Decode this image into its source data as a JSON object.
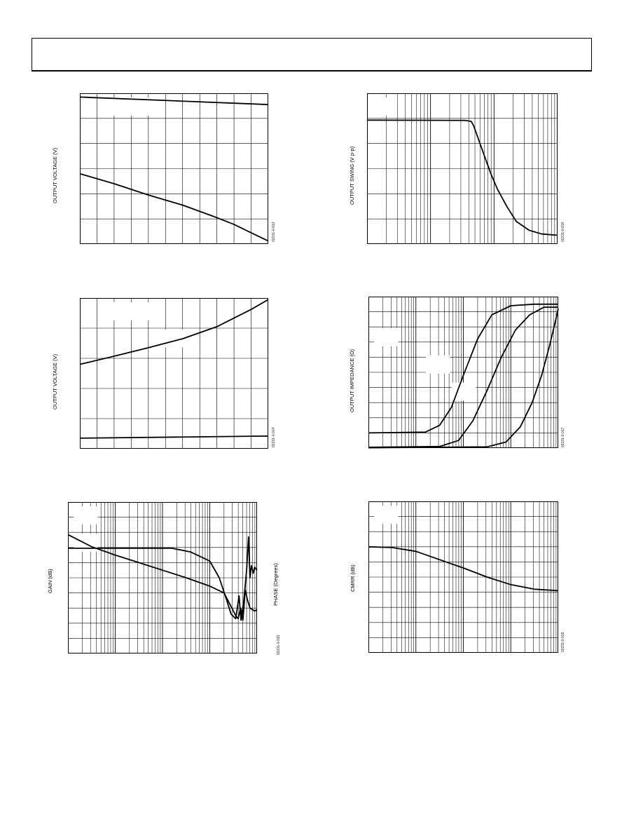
{
  "charts": [
    {
      "id": "c1",
      "ylabel": "OUTPUT VOLTAGE (V)",
      "code": "02231-0-013",
      "xscale": "linear",
      "xlim": [
        0,
        11
      ],
      "ylim": [
        0,
        6
      ],
      "xgrid": [
        1,
        2,
        3,
        4,
        5,
        6,
        7,
        8,
        9,
        10
      ],
      "ygrid": [
        1,
        2,
        3,
        4,
        5
      ],
      "series": [
        {
          "points": [
            [
              0,
              5.85
            ],
            [
              11,
              5.55
            ]
          ]
        },
        {
          "points": [
            [
              0,
              2.8
            ],
            [
              2,
              2.4
            ],
            [
              4,
              1.95
            ],
            [
              6,
              1.55
            ],
            [
              8,
              1.05
            ],
            [
              9,
              0.78
            ],
            [
              10,
              0.45
            ],
            [
              11,
              0.12
            ]
          ]
        }
      ],
      "masks": [
        [
          1,
          0
        ],
        [
          2,
          0
        ]
      ]
    },
    {
      "id": "c2",
      "ylabel": "OUTPUT SWING (V p-p)",
      "code": "02231-0-016",
      "xscale": "log",
      "xlim": [
        0,
        3
      ],
      "ylim": [
        0,
        6
      ],
      "ygrid": [
        1,
        2,
        3,
        4,
        5
      ],
      "series": [
        {
          "points": [
            [
              0,
              4.93
            ],
            [
              1.55,
              4.92
            ],
            [
              1.64,
              4.88
            ],
            [
              1.68,
              4.7
            ],
            [
              1.75,
              4.2
            ],
            [
              1.85,
              3.5
            ],
            [
              1.95,
              2.8
            ],
            [
              2.05,
              2.2
            ],
            [
              2.2,
              1.5
            ],
            [
              2.35,
              0.9
            ],
            [
              2.55,
              0.55
            ],
            [
              2.75,
              0.4
            ],
            [
              3,
              0.35
            ]
          ]
        }
      ],
      "masks": [
        [
          0,
          0
        ]
      ]
    },
    {
      "id": "c3",
      "ylabel": "OUTPUT VOLTAGE (V)",
      "code": "02231-0-014",
      "xscale": "linear",
      "xlim": [
        0,
        11
      ],
      "ylim": [
        0,
        5
      ],
      "xgrid": [
        1,
        2,
        3,
        4,
        5,
        6,
        7,
        8,
        9,
        10
      ],
      "ygrid": [
        1,
        2,
        3,
        4
      ],
      "series": [
        {
          "points": [
            [
              0,
              2.8
            ],
            [
              2,
              3.07
            ],
            [
              4,
              3.35
            ],
            [
              6,
              3.65
            ],
            [
              8,
              4.05
            ],
            [
              10,
              4.62
            ],
            [
              11,
              4.95
            ]
          ]
        },
        {
          "points": [
            [
              0,
              0.35
            ],
            [
              11,
              0.42
            ]
          ]
        }
      ],
      "masks": [
        [
          1,
          0
        ],
        [
          2,
          0
        ],
        [
          3,
          1
        ]
      ]
    },
    {
      "id": "c4",
      "ylabel": "OUTPUT IMPEDANCE (Ω)",
      "code": "02231-0-017",
      "xscale": "log",
      "xlim": [
        0,
        4
      ],
      "ylim": [
        0,
        10
      ],
      "ygrid": [
        1,
        2,
        3,
        4,
        5,
        6,
        7,
        8,
        9
      ],
      "series": [
        {
          "points": [
            [
              0,
              1.0
            ],
            [
              1.2,
              1.05
            ],
            [
              1.5,
              1.5
            ],
            [
              1.75,
              2.7
            ],
            [
              2.0,
              4.8
            ],
            [
              2.3,
              7.2
            ],
            [
              2.6,
              8.8
            ],
            [
              3.0,
              9.4
            ],
            [
              3.5,
              9.5
            ],
            [
              4,
              9.5
            ]
          ]
        },
        {
          "points": [
            [
              0,
              0.05
            ],
            [
              1.5,
              0.1
            ],
            [
              1.9,
              0.5
            ],
            [
              2.2,
              1.8
            ],
            [
              2.5,
              3.8
            ],
            [
              2.8,
              6.0
            ],
            [
              3.1,
              7.8
            ],
            [
              3.4,
              8.8
            ],
            [
              3.7,
              9.3
            ],
            [
              4,
              9.3
            ]
          ]
        },
        {
          "points": [
            [
              0,
              0.02
            ],
            [
              2.5,
              0.08
            ],
            [
              2.9,
              0.4
            ],
            [
              3.2,
              1.4
            ],
            [
              3.45,
              3.0
            ],
            [
              3.65,
              4.8
            ],
            [
              3.82,
              6.8
            ],
            [
              3.95,
              8.5
            ],
            [
              4,
              9.2
            ]
          ]
        }
      ],
      "masks": [
        [
          0,
          1
        ],
        [
          2,
          2
        ],
        [
          3,
          3
        ]
      ]
    },
    {
      "id": "c5",
      "ylabel": "GAIN (dB)",
      "ylabel2": "PHASE (Degrees)",
      "code": "02231-0-015",
      "xscale": "log",
      "xlim": [
        0,
        4
      ],
      "ylim": [
        0,
        10
      ],
      "ygrid": [
        1,
        2,
        3,
        4,
        5,
        6,
        7,
        8,
        9
      ],
      "series": [
        {
          "points": [
            [
              0,
              7.85
            ],
            [
              0.5,
              7.05
            ],
            [
              1.0,
              6.5
            ],
            [
              1.5,
              6.0
            ],
            [
              2.0,
              5.5
            ],
            [
              2.5,
              5.0
            ],
            [
              3.0,
              4.45
            ],
            [
              3.3,
              4.0
            ],
            [
              3.45,
              3.1
            ],
            [
              3.55,
              2.5
            ],
            [
              3.6,
              2.3
            ],
            [
              3.65,
              3.0
            ],
            [
              3.7,
              2.2
            ],
            [
              3.75,
              4.2
            ],
            [
              3.8,
              3.5
            ],
            [
              3.85,
              3.0
            ],
            [
              3.9,
              2.9
            ],
            [
              3.95,
              2.8
            ],
            [
              4,
              2.9
            ]
          ]
        },
        {
          "points": [
            [
              0,
              6.95
            ],
            [
              2.2,
              6.95
            ],
            [
              2.6,
              6.7
            ],
            [
              3.0,
              6.1
            ],
            [
              3.2,
              5.0
            ],
            [
              3.35,
              3.6
            ],
            [
              3.45,
              2.6
            ],
            [
              3.55,
              2.3
            ],
            [
              3.62,
              3.8
            ],
            [
              3.66,
              2.2
            ],
            [
              3.72,
              3.5
            ],
            [
              3.78,
              5.5
            ],
            [
              3.82,
              7.7
            ],
            [
              3.85,
              5.0
            ],
            [
              3.88,
              5.8
            ],
            [
              3.92,
              5.3
            ],
            [
              3.95,
              5.7
            ],
            [
              4,
              5.5
            ]
          ]
        }
      ],
      "masks": [
        [
          0,
          0
        ],
        [
          0,
          1
        ]
      ]
    },
    {
      "id": "c6",
      "ylabel": "CMRR (dB)",
      "code": "02231-0-018",
      "xscale": "log",
      "xlim": [
        0,
        4
      ],
      "ylim": [
        0,
        10
      ],
      "ygrid": [
        1,
        2,
        3,
        4,
        5,
        6,
        7,
        8,
        9
      ],
      "series": [
        {
          "points": [
            [
              0,
              7.0
            ],
            [
              0.5,
              6.95
            ],
            [
              1.0,
              6.7
            ],
            [
              1.5,
              6.15
            ],
            [
              2.0,
              5.6
            ],
            [
              2.5,
              5.0
            ],
            [
              3.0,
              4.5
            ],
            [
              3.5,
              4.2
            ],
            [
              4,
              4.1
            ]
          ]
        }
      ],
      "masks": [
        [
          0,
          0
        ]
      ]
    }
  ]
}
